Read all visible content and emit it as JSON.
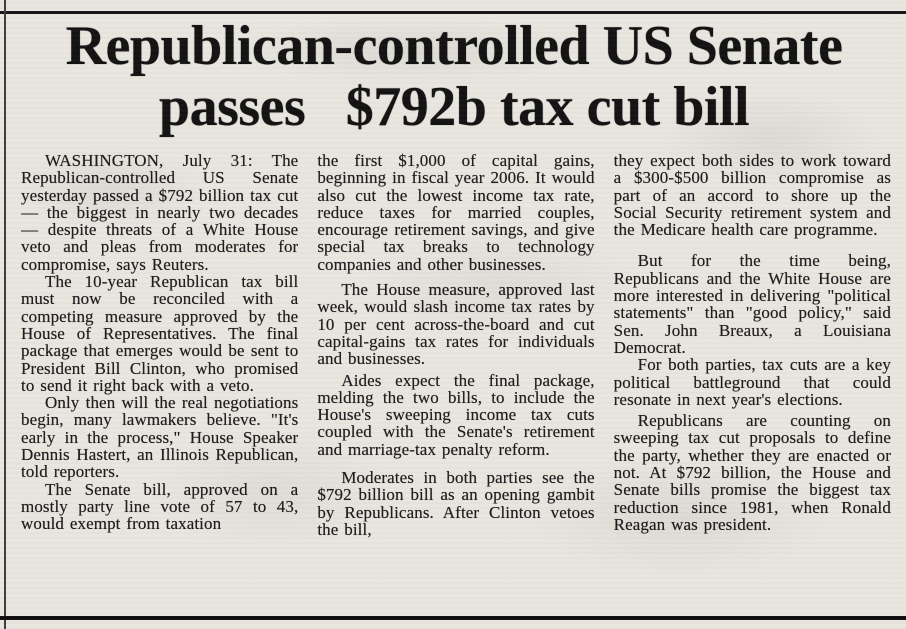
{
  "colors": {
    "paper": "#e9e6e0",
    "ink": "#1c1c1c",
    "rule": "#161616"
  },
  "headline": {
    "line1": "Republican-controlled US Senate",
    "line2": "passes   $792b tax cut bill"
  },
  "article": {
    "source": "Reuters",
    "dateline": "WASHINGTON, July 31",
    "columns": [
      [
        "WASHINGTON, July 31: The Republican-controlled US Senate yesterday passed a $792 billion tax cut — the biggest in nearly two decades — despite threats of a White House veto and pleas from moderates for compromise, says Reuters.",
        "The 10-year Republican tax bill must now be reconciled with a competing measure approved by the House of Representatives. The final package that emerges would be sent to President Bill Clinton, who promised to send it right back with a veto.",
        "Only then will the real negotiations begin, many lawmakers believe. \"It's early in the process,\" House Speaker Dennis Hastert, an Illinois Republican, told reporters.",
        "The Senate bill, approved on a mostly party line vote of 57 to 43, would exempt from taxation"
      ],
      [
        "the first $1,000 of capital gains, beginning in fiscal year 2006. It would also cut the lowest income tax rate, reduce taxes for married couples, encourage retirement savings, and give special tax breaks to technology companies and other businesses.",
        "The House measure, approved last week, would slash income tax rates by 10 per cent across-the-board and cut capital-gains tax rates for individuals and businesses.",
        "Aides expect the final package, melding the two bills, to include the House's sweeping income tax cuts coupled with the Senate's  retirement and marriage-tax penalty reform.",
        "Moderates in both parties see the $792 billion bill as an opening gambit by Republicans. After Clinton vetoes the bill,"
      ],
      [
        "they expect both sides to work toward a $300-$500 billion compromise as part of an accord to shore up the Social Security retirement  system and the Medicare health care programme.",
        "But for the time being, Republicans and the White House are more interested in delivering \"political statements\" than \"good policy,\" said Sen. John Breaux, a Louisiana Democrat.",
        "For both parties, tax cuts are a key political battleground that could resonate in next year's elections.",
        "Republicans are counting on sweeping tax cut proposals to define the party, whether they are enacted or not. At $792 billion, the House and Senate bills promise the biggest tax reduction since 1981, when Ronald Reagan was president."
      ]
    ]
  }
}
